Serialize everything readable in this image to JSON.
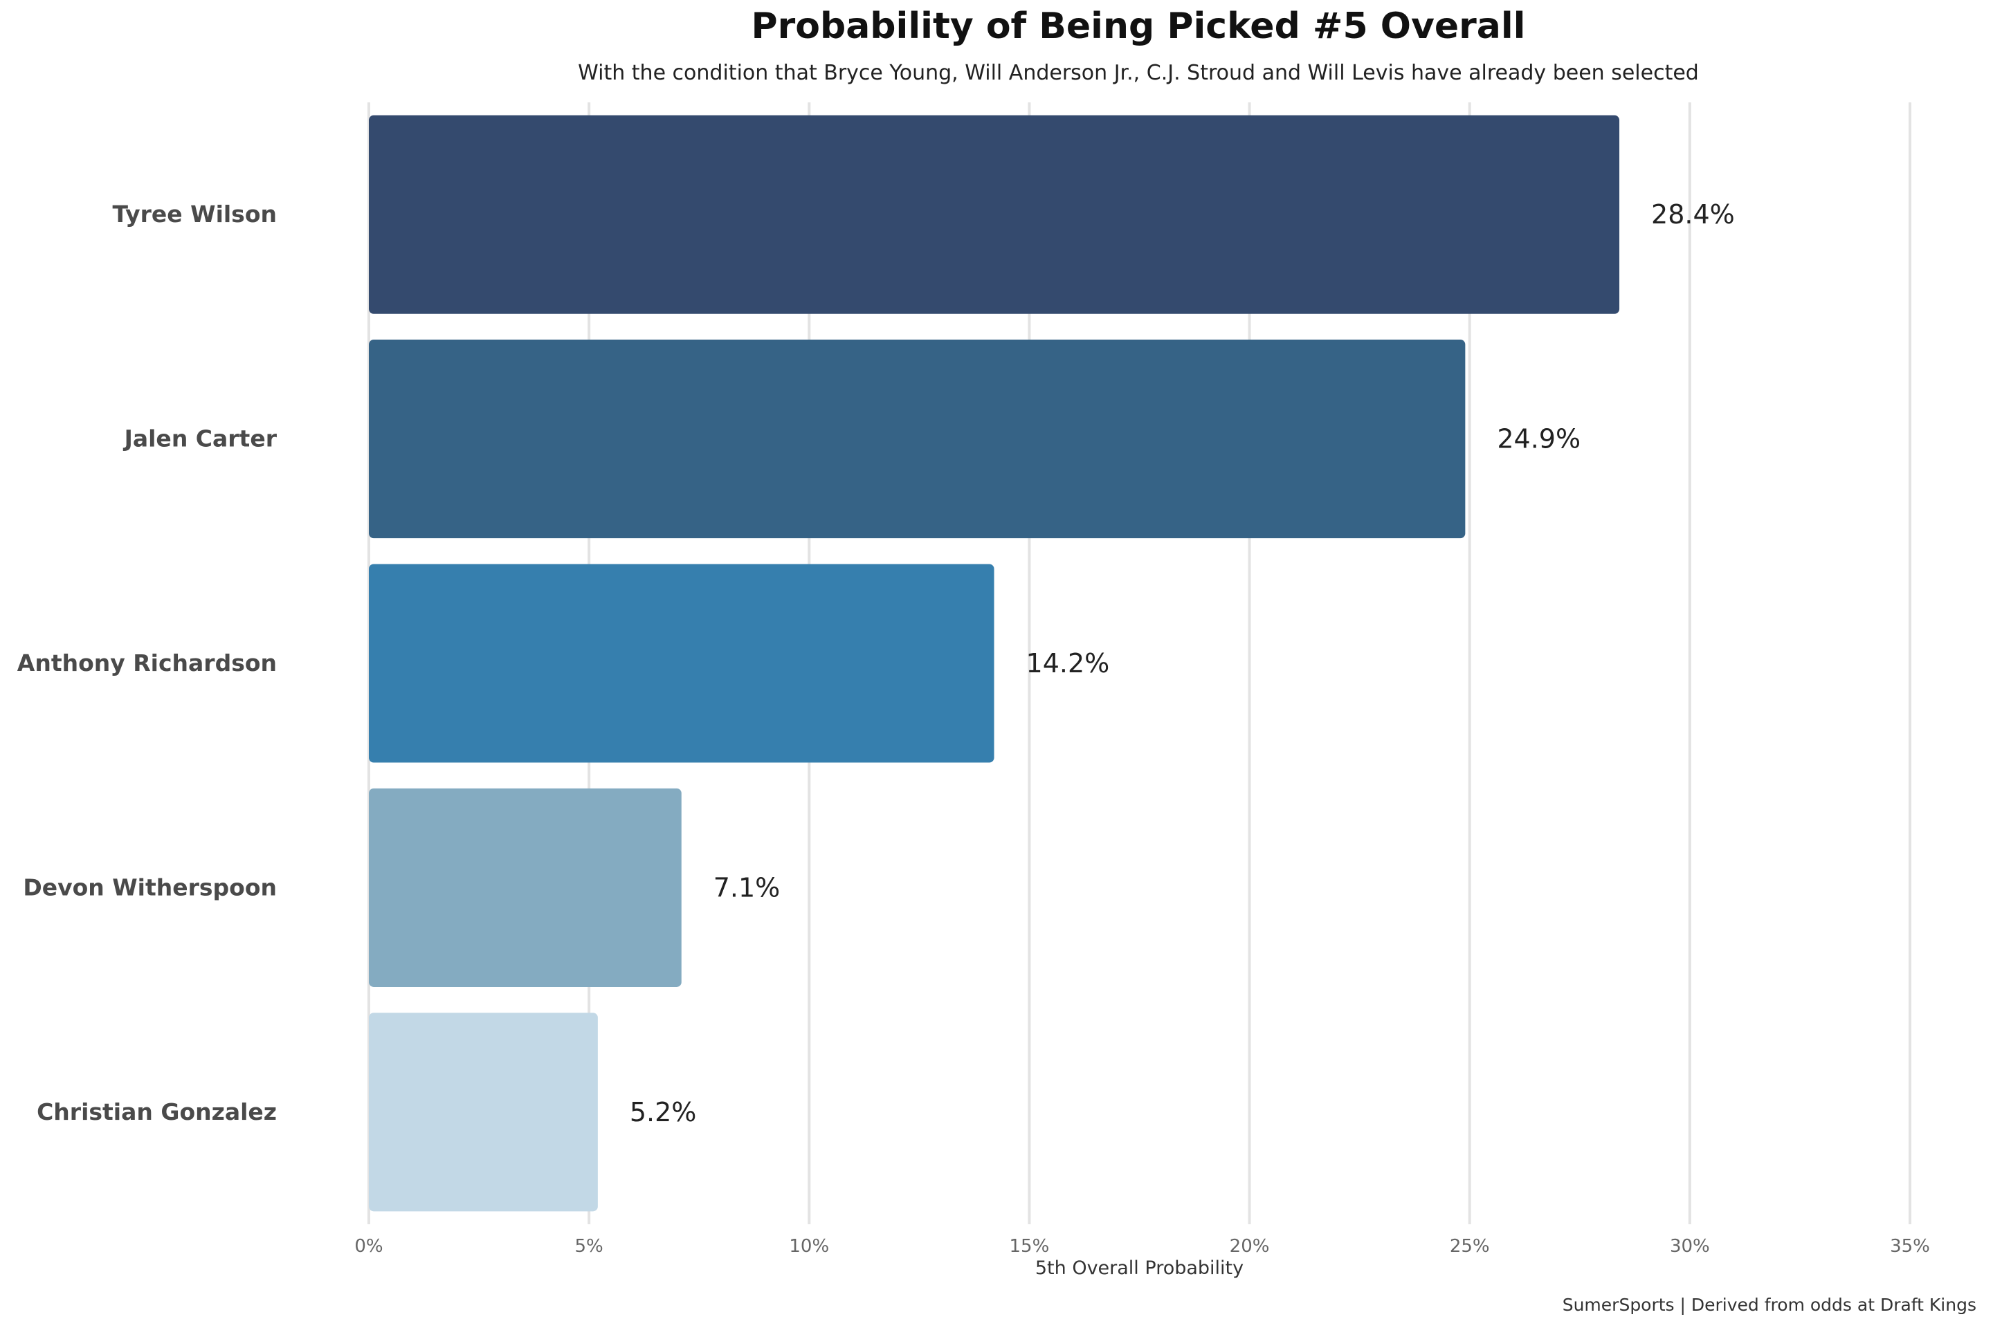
{
  "chart_data": {
    "type": "bar",
    "orientation": "horizontal",
    "title": "Probability of Being Picked #5 Overall",
    "subtitle": "With the condition that Bryce Young, Will Anderson Jr., C.J. Stroud and Will Levis have already been selected",
    "categories": [
      "Tyree Wilson",
      "Jalen Carter",
      "Anthony Richardson",
      "Devon Witherspoon",
      "Christian Gonzalez"
    ],
    "values": [
      28.4,
      24.9,
      14.2,
      7.1,
      5.2
    ],
    "value_labels": [
      "28.4%",
      "24.9%",
      "14.2%",
      "7.1%",
      "5.2%"
    ],
    "bar_colors": [
      "#344a6e",
      "#366386",
      "#367fae",
      "#84abc1",
      "#c2d8e6"
    ],
    "xlabel": "5th Overall Probability",
    "ylabel": "",
    "xlim": [
      0,
      35
    ],
    "xticks": [
      0,
      5,
      10,
      15,
      20,
      25,
      30,
      35
    ],
    "xtick_labels": [
      "0%",
      "5%",
      "10%",
      "15%",
      "20%",
      "25%",
      "30%",
      "35%"
    ],
    "grid": "vertical",
    "legend": "none",
    "caption": "SumerSports | Derived from odds at Draft Kings"
  }
}
